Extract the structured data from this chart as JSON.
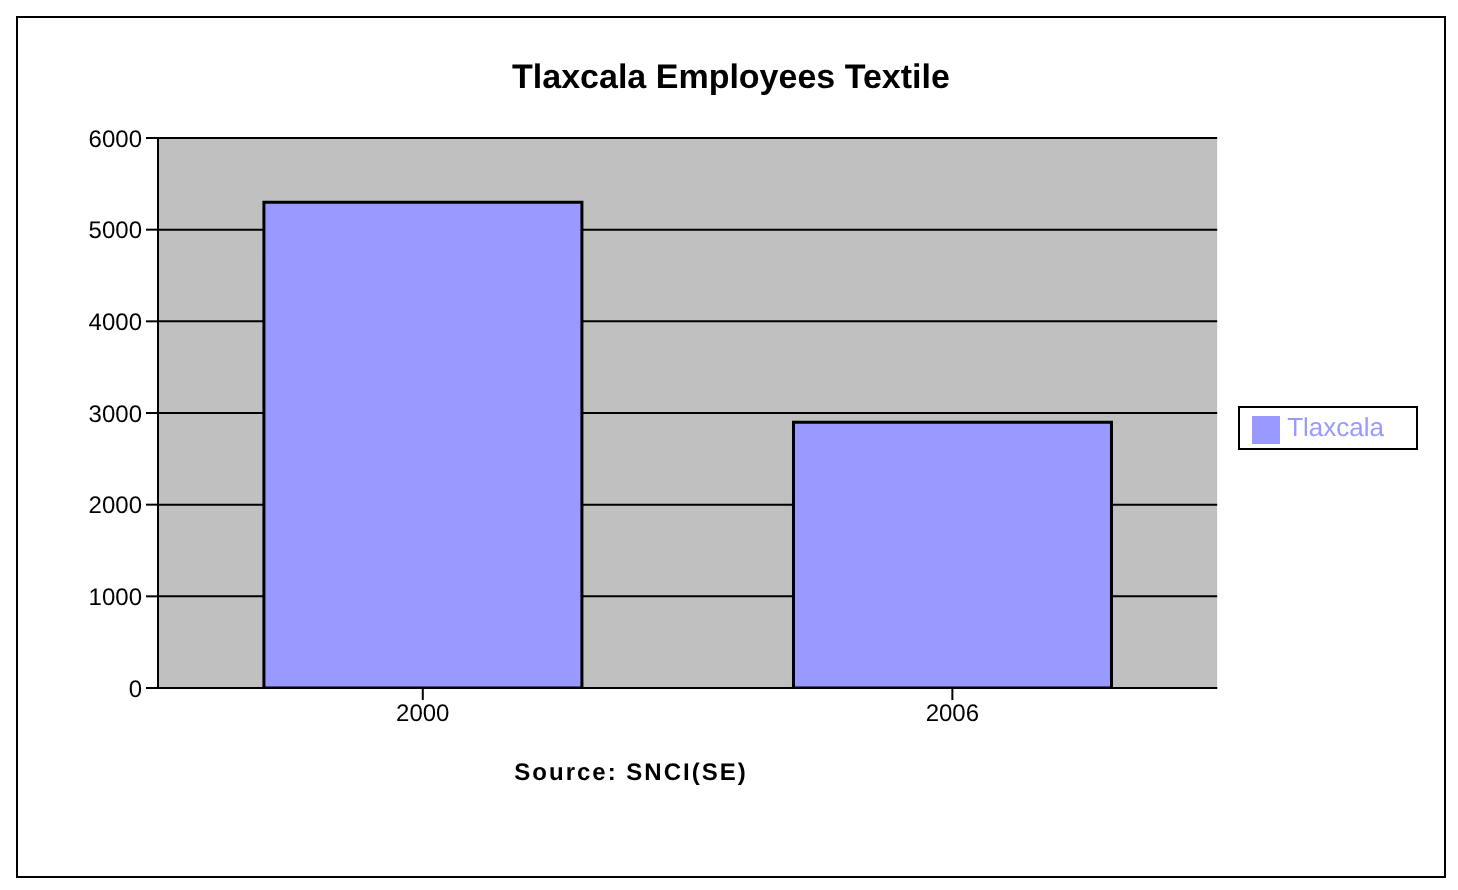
{
  "chart_data": {
    "type": "bar",
    "title": "Tlaxcala Employees Textile",
    "categories": [
      "2000",
      "2006"
    ],
    "series": [
      {
        "name": "Tlaxcala",
        "color": "#9999ff",
        "values": [
          5300,
          2900
        ]
      }
    ],
    "ylim": [
      0,
      6000
    ],
    "yticks": [
      0,
      1000,
      2000,
      3000,
      4000,
      5000,
      6000
    ],
    "grid": "y",
    "legend": "right",
    "annotations": [
      "Source: SNCI(SE)"
    ]
  }
}
